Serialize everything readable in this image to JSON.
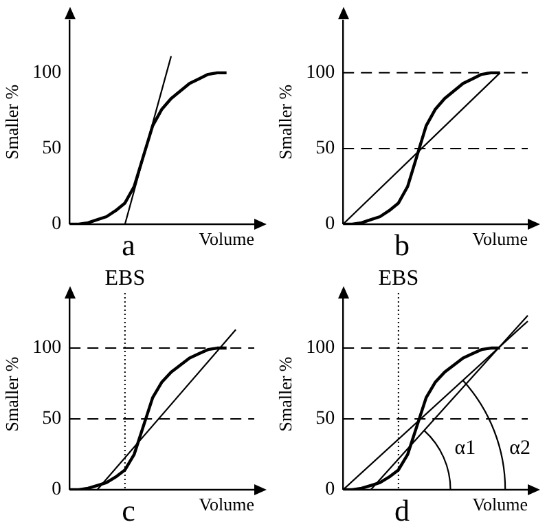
{
  "chart_data": [
    {
      "type": "line",
      "title": "a",
      "xlabel": "Volume",
      "ylabel": "Smaller %",
      "categories": [
        null,
        null,
        null,
        null,
        null,
        null,
        null,
        null,
        null,
        null,
        null,
        null,
        null,
        null,
        null,
        null,
        null,
        null,
        null,
        null,
        null
      ],
      "ylim": [
        0,
        135
      ],
      "yticks": [
        0,
        50,
        100
      ],
      "tick_labels": "y",
      "grid": false,
      "legend": false,
      "marker": "none",
      "line_style": "solid",
      "series": [
        {
          "color": "#000000",
          "values": [
            0,
            0,
            1,
            3,
            5,
            9,
            14,
            25,
            45,
            65,
            76,
            83,
            88,
            93,
            96,
            99,
            100,
            100,
            null,
            null,
            null
          ]
        },
        {
          "color": "#000000",
          "values": [
            null,
            null,
            null,
            null,
            null,
            null,
            0,
            null,
            null,
            null,
            null,
            111,
            null,
            null,
            null,
            null,
            null,
            null,
            null,
            null,
            null
          ]
        }
      ]
    },
    {
      "type": "line",
      "title": "b",
      "xlabel": "Volume",
      "ylabel": "Smaller %",
      "categories": [
        null,
        null,
        null,
        null,
        null,
        null,
        null,
        null,
        null,
        null,
        null,
        null,
        null,
        null,
        null,
        null,
        null,
        null,
        null,
        null,
        null
      ],
      "ylim": [
        0,
        135
      ],
      "yticks": [
        0,
        50,
        100
      ],
      "tick_labels": "y",
      "grid": false,
      "legend": false,
      "marker": "none",
      "line_style": "solid",
      "series": [
        {
          "color": "#000000",
          "values": [
            0,
            0,
            1,
            3,
            5,
            9,
            14,
            25,
            45,
            65,
            76,
            83,
            88,
            93,
            96,
            99,
            100,
            100,
            null,
            null,
            null
          ]
        },
        {
          "color": "#000000",
          "values": [
            0,
            null,
            null,
            null,
            null,
            null,
            null,
            null,
            null,
            null,
            null,
            null,
            null,
            null,
            null,
            null,
            null,
            100,
            null,
            null,
            null
          ]
        }
      ],
      "ref_lines": [
        {
          "axis": "y",
          "value": 50,
          "line_style": "dashed"
        },
        {
          "axis": "y",
          "value": 100,
          "line_style": "dashed"
        }
      ]
    },
    {
      "type": "line",
      "title": "c",
      "xlabel": "Volume",
      "ylabel": "Smaller %",
      "categories": [
        null,
        null,
        null,
        null,
        null,
        null,
        null,
        null,
        null,
        null,
        null,
        null,
        null,
        null,
        null,
        null,
        null,
        null,
        null,
        null,
        null
      ],
      "ylim": [
        0,
        135
      ],
      "yticks": [
        0,
        50,
        100
      ],
      "tick_labels": "y",
      "grid": false,
      "legend": false,
      "marker": "none",
      "line_style": "solid",
      "series": [
        {
          "color": "#000000",
          "values": [
            0,
            0,
            1,
            3,
            5,
            9,
            14,
            25,
            45,
            65,
            76,
            83,
            88,
            93,
            96,
            99,
            100,
            100,
            null,
            null,
            null
          ]
        },
        {
          "color": "#000000",
          "values": [
            null,
            null,
            null,
            0,
            null,
            null,
            null,
            null,
            null,
            null,
            null,
            null,
            null,
            null,
            null,
            null,
            null,
            null,
            113,
            null,
            null
          ]
        }
      ],
      "ref_lines": [
        {
          "axis": "y",
          "value": 50,
          "line_style": "dashed"
        },
        {
          "axis": "y",
          "value": 100,
          "line_style": "dashed"
        }
      ],
      "annotations": [
        "EBS"
      ]
    },
    {
      "type": "line",
      "title": "d",
      "xlabel": "Volume",
      "ylabel": "Smaller %",
      "categories": [
        null,
        null,
        null,
        null,
        null,
        null,
        null,
        null,
        null,
        null,
        null,
        null,
        null,
        null,
        null,
        null,
        null,
        null,
        null,
        null,
        null
      ],
      "ylim": [
        0,
        135
      ],
      "yticks": [
        0,
        50,
        100
      ],
      "tick_labels": "y",
      "grid": false,
      "legend": false,
      "marker": "none",
      "line_style": "solid",
      "series": [
        {
          "color": "#000000",
          "values": [
            0,
            0,
            1,
            3,
            5,
            9,
            14,
            25,
            45,
            65,
            76,
            83,
            88,
            93,
            96,
            99,
            100,
            100,
            null,
            null,
            null
          ]
        },
        {
          "color": "#000000",
          "values": [
            null,
            null,
            null,
            0,
            null,
            null,
            null,
            null,
            null,
            null,
            null,
            null,
            null,
            null,
            null,
            null,
            null,
            null,
            null,
            null,
            123
          ]
        },
        {
          "color": "#000000",
          "values": [
            0,
            null,
            null,
            null,
            null,
            null,
            null,
            null,
            null,
            null,
            null,
            null,
            null,
            null,
            null,
            null,
            null,
            null,
            null,
            null,
            119
          ]
        }
      ],
      "ref_lines": [
        {
          "axis": "y",
          "value": 50,
          "line_style": "dashed"
        },
        {
          "axis": "y",
          "value": 100,
          "line_style": "dashed"
        }
      ],
      "annotations": [
        "EBS",
        "α1",
        "α2"
      ]
    }
  ]
}
